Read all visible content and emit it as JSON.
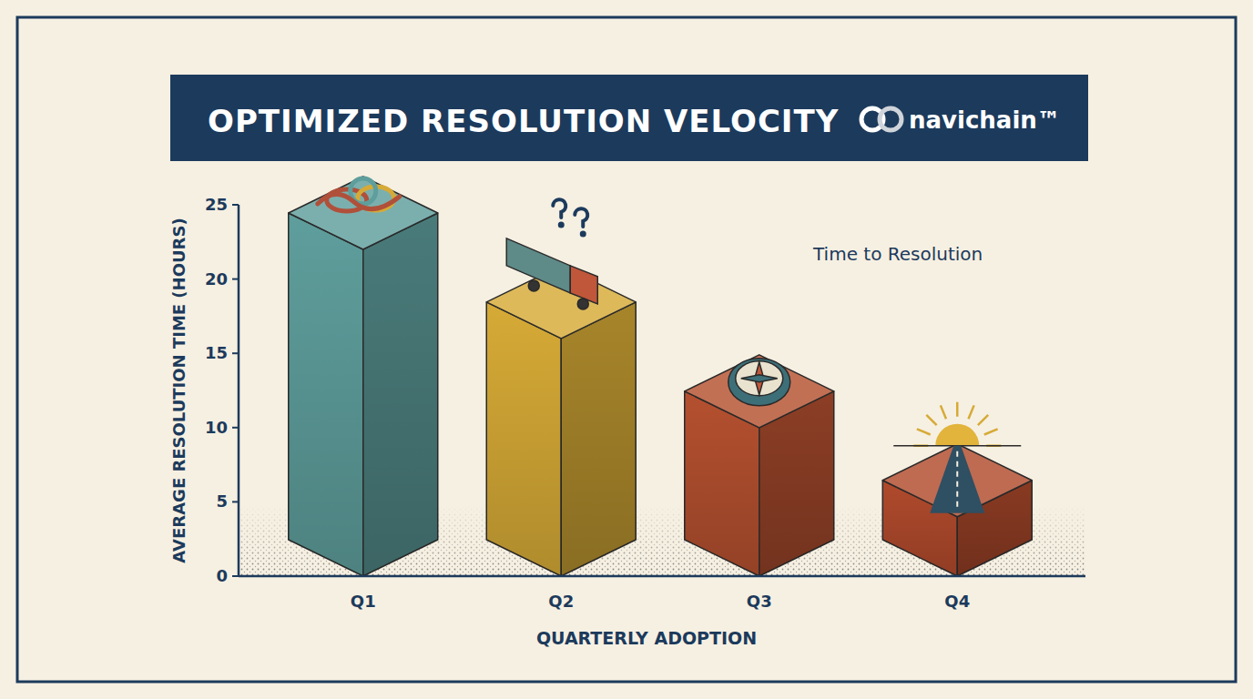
{
  "chart_data": {
    "type": "bar",
    "title": "OPTIMIZED RESOLUTION VELOCITY",
    "brand": "navichain™",
    "annotation": "Time to Resolution",
    "x_label": "QUARTERLY ADOPTION",
    "y_label": "AVERAGE RESOLUTION TIME (HOURS)",
    "categories": [
      "Q1",
      "Q2",
      "Q3",
      "Q4"
    ],
    "values": [
      22,
      16,
      10,
      4
    ],
    "colors": [
      "#5e9e9c",
      "#d6aa36",
      "#b4502f",
      "#b04a2c"
    ],
    "ylim": [
      0,
      25
    ],
    "yticks": [
      0,
      5,
      10,
      15,
      20,
      25
    ],
    "grid": false
  }
}
